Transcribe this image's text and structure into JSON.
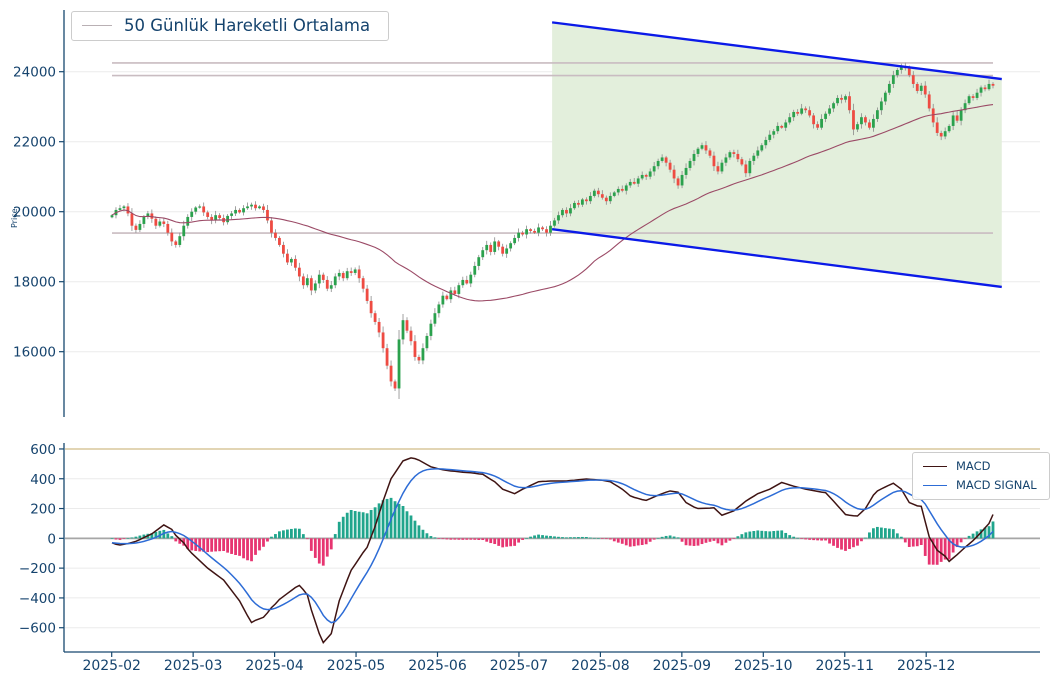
{
  "legend": {
    "ma_label": "50 Günlük Hareketli Ortalama"
  },
  "macd_legend": {
    "macd_label": "MACD",
    "signal_label": "MACD SIGNAL"
  },
  "colors": {
    "tick_text": "#15436d",
    "spine": "#17486f",
    "grid": "#ebebeb",
    "candle_up": "#2ba14d",
    "candle_down": "#ee4b42",
    "wick": "#8a8a8a",
    "ma_line": "#9b4a66",
    "level_line": "#c9bcc1",
    "channel_line": "#0b1ae8",
    "channel_fill": "#e3efdc",
    "macd_line": "#3f1413",
    "signal_line": "#2d6cd6",
    "hist_up": "#20a58c",
    "hist_down": "#e73571",
    "zero_line": "#a6a6a6",
    "tan_line": "#d9c79c",
    "legend_swatch_ma": "#b9b0b4"
  },
  "chart_data": [
    {
      "type": "candlestick",
      "title": "",
      "ylabel": "Price",
      "ma_window": 50,
      "ma_name": "50 Günlük Hareketli Ortalama",
      "ylim": [
        14134,
        25763
      ],
      "y_ticks": {
        "values": [
          16000,
          18000,
          20000,
          22000,
          24000
        ],
        "labels": [
          "16000",
          "18000",
          "20000",
          "22000",
          "24000"
        ]
      },
      "support_resistance_levels": [
        24250,
        23890,
        19390
      ],
      "trend_channel": {
        "start_index": 110.4,
        "end_index": 223.2,
        "upper_start": 25410,
        "upper_end": 23790,
        "lower_start": 19500,
        "lower_end": 17850
      },
      "closes": [
        19900,
        20050,
        20100,
        20150,
        19950,
        19600,
        19480,
        19650,
        19850,
        19950,
        19800,
        19600,
        19720,
        19650,
        19400,
        19150,
        19050,
        19300,
        19600,
        19850,
        20000,
        20120,
        20150,
        19980,
        19850,
        19750,
        19900,
        19820,
        19700,
        19880,
        19950,
        20050,
        19980,
        20100,
        20150,
        20200,
        20100,
        20150,
        20050,
        19750,
        19400,
        19250,
        19050,
        18800,
        18550,
        18650,
        18400,
        18150,
        17900,
        18100,
        17750,
        17950,
        18200,
        18050,
        17800,
        17900,
        18150,
        18250,
        18100,
        18300,
        18250,
        18350,
        18100,
        17800,
        17450,
        17100,
        16850,
        16550,
        16100,
        15600,
        15150,
        14950,
        16350,
        16900,
        16600,
        16300,
        15850,
        15750,
        16100,
        16450,
        16800,
        17100,
        17350,
        17600,
        17500,
        17750,
        17650,
        17900,
        18050,
        17950,
        18200,
        18450,
        18700,
        18900,
        19050,
        18850,
        19150,
        19000,
        18800,
        18950,
        19100,
        19250,
        19400,
        19350,
        19500,
        19450,
        19400,
        19550,
        19500,
        19400,
        19600,
        19750,
        19900,
        20050,
        19950,
        20100,
        20250,
        20200,
        20350,
        20300,
        20450,
        20600,
        20500,
        20400,
        20300,
        20450,
        20550,
        20650,
        20600,
        20750,
        20850,
        20800,
        20950,
        21050,
        21000,
        21150,
        21300,
        21450,
        21550,
        21400,
        21200,
        20950,
        20750,
        21050,
        21250,
        21450,
        21650,
        21800,
        21900,
        21750,
        21600,
        21300,
        21150,
        21400,
        21550,
        21700,
        21650,
        21500,
        21350,
        21100,
        21450,
        21600,
        21750,
        21900,
        22050,
        22200,
        22300,
        22450,
        22400,
        22550,
        22700,
        22850,
        22800,
        22950,
        22900,
        22750,
        22500,
        22400,
        22650,
        22800,
        22950,
        23100,
        23250,
        23200,
        23300,
        22900,
        22350,
        22500,
        22700,
        22550,
        22400,
        22650,
        22900,
        23150,
        23400,
        23650,
        23900,
        24050,
        24150,
        24100,
        23900,
        23650,
        23450,
        23600,
        23350,
        22950,
        22550,
        22250,
        22150,
        22300,
        22450,
        22750,
        22600,
        22900,
        23100,
        23300,
        23250,
        23400,
        23550,
        23500,
        23650,
        23600
      ]
    },
    {
      "type": "bar+line",
      "title": "MACD",
      "series_names": [
        "MACD",
        "MACD SIGNAL"
      ],
      "signal_method": "EMA9 of MACD",
      "histogram_method": "MACD minus SIGNAL",
      "ylim": [
        -763,
        640
      ],
      "level_line": 600,
      "y_ticks": {
        "values": [
          600,
          400,
          200,
          0,
          -200,
          -400,
          -600
        ],
        "labels": [
          "600",
          "400",
          "200",
          "0",
          "−200",
          "−400",
          "−600"
        ]
      },
      "macd": [
        -30,
        -40,
        -45,
        -40,
        -35,
        -28,
        -20,
        -8,
        5,
        18,
        30,
        50,
        70,
        90,
        75,
        60,
        20,
        -5,
        -30,
        -70,
        -100,
        -125,
        -150,
        -175,
        -200,
        -220,
        -240,
        -260,
        -280,
        -315,
        -350,
        -385,
        -420,
        -470,
        -520,
        -565,
        -550,
        -540,
        -530,
        -500,
        -465,
        -440,
        -410,
        -390,
        -370,
        -350,
        -330,
        -316,
        -345,
        -380,
        -480,
        -560,
        -640,
        -700,
        -670,
        -640,
        -530,
        -420,
        -350,
        -280,
        -214,
        -175,
        -135,
        -95,
        -60,
        10,
        80,
        165,
        250,
        325,
        400,
        440,
        480,
        520,
        530,
        540,
        535,
        525,
        510,
        495,
        480,
        473,
        466,
        460,
        456,
        452,
        450,
        447,
        444,
        442,
        440,
        437,
        433,
        430,
        413,
        396,
        380,
        355,
        330,
        320,
        310,
        300,
        315,
        330,
        342,
        355,
        368,
        380,
        382,
        383,
        385,
        385,
        385,
        385,
        385,
        388,
        390,
        393,
        396,
        398,
        396,
        394,
        392,
        390,
        385,
        380,
        363,
        347,
        330,
        308,
        285,
        275,
        268,
        260,
        255,
        266,
        278,
        290,
        300,
        310,
        318,
        314,
        310,
        275,
        240,
        225,
        210,
        200,
        201,
        202,
        203,
        205,
        180,
        155,
        165,
        175,
        185,
        207,
        228,
        250,
        267,
        283,
        300,
        310,
        320,
        330,
        345,
        360,
        375,
        367,
        358,
        350,
        343,
        337,
        330,
        325,
        320,
        315,
        310,
        307,
        278,
        250,
        220,
        190,
        160,
        155,
        152,
        150,
        175,
        200,
        245,
        290,
        318,
        332,
        345,
        358,
        370,
        350,
        330,
        285,
        240,
        229,
        218,
        215,
        112,
        10,
        -35,
        -80,
        -100,
        -120,
        -155,
        -132,
        -110,
        -85,
        -60,
        -38,
        -15,
        12,
        40,
        70,
        100,
        160
      ]
    }
  ],
  "x_axis": {
    "tick_labels": [
      "2025-02",
      "2025-03",
      "2025-04",
      "2025-05",
      "2025-06",
      "2025-07",
      "2025-08",
      "2025-09",
      "2025-10",
      "2025-11",
      "2025-12"
    ]
  }
}
